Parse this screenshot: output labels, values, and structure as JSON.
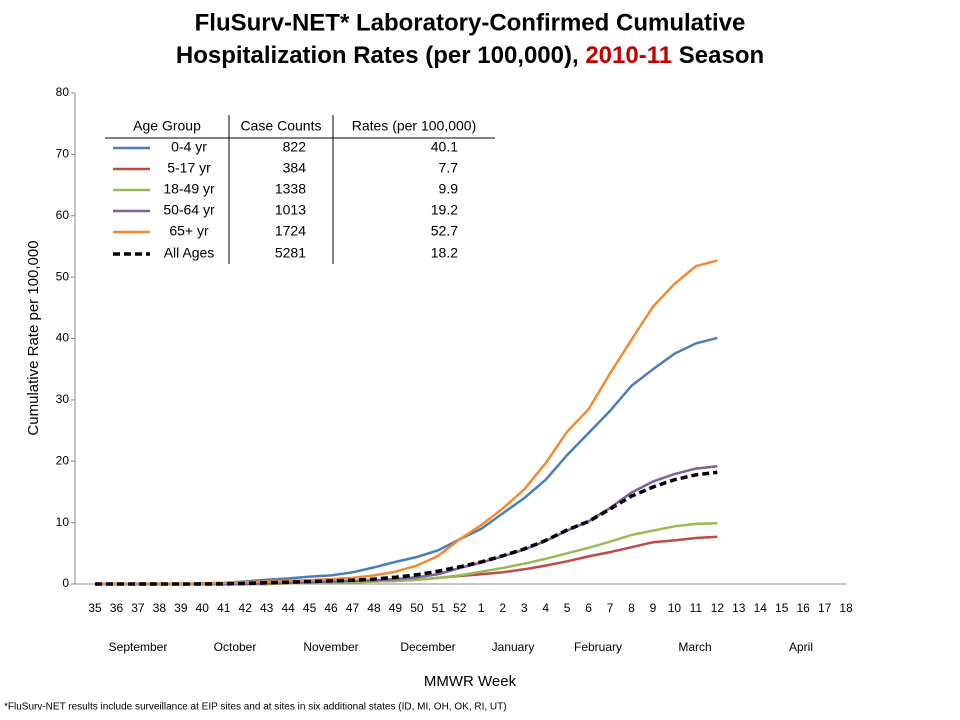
{
  "chart_data": {
    "type": "line",
    "title_line1": "FluSurv-NET* Laboratory-Confirmed Cumulative",
    "title_line2_prefix": "Hospitalization Rates (per 100,000),",
    "title_line2_highlight": "2010-11",
    "title_line2_suffix": "Season",
    "highlight_color": "#c00000",
    "x_label": "MMWR Week",
    "y_label": "Cumulative Rate per 100,000",
    "footnote": "*FluSurv-NET results include surveillance at EIP sites and at sites in six additional states (ID, MI, OH, OK, RI, UT)",
    "categories": [
      "35",
      "36",
      "37",
      "38",
      "39",
      "40",
      "41",
      "42",
      "43",
      "44",
      "45",
      "46",
      "47",
      "48",
      "49",
      "50",
      "51",
      "52",
      "1",
      "2",
      "3",
      "4",
      "5",
      "6",
      "7",
      "8",
      "9",
      "10",
      "11",
      "12",
      "13",
      "14",
      "15",
      "16",
      "17",
      "18"
    ],
    "months": [
      "September",
      "October",
      "November",
      "December",
      "January",
      "February",
      "March",
      "April"
    ],
    "ylim": [
      0,
      80
    ],
    "yticks": [
      0,
      10,
      20,
      30,
      40,
      50,
      60,
      70,
      80
    ],
    "grid": false,
    "series": [
      {
        "name": "0-4 yr",
        "color": "#4a7ebb",
        "style": "solid",
        "values": [
          0,
          0,
          0,
          0,
          0,
          0.1,
          0.2,
          0.4,
          0.7,
          0.9,
          1.2,
          1.4,
          1.9,
          2.7,
          3.6,
          4.4,
          5.5,
          7.3,
          9,
          11.5,
          14,
          17,
          21,
          24.6,
          28.2,
          32.3,
          35,
          37.5,
          39.2,
          40.1,
          null,
          null,
          null,
          null,
          null,
          null
        ]
      },
      {
        "name": "5-17 yr",
        "color": "#be4b48",
        "style": "solid",
        "values": [
          0,
          0,
          0,
          0,
          0,
          0,
          0,
          0,
          0,
          0.1,
          0.2,
          0.2,
          0.3,
          0.4,
          0.5,
          0.7,
          1.0,
          1.3,
          1.6,
          1.9,
          2.4,
          3.0,
          3.7,
          4.5,
          5.2,
          6.0,
          6.8,
          7.1,
          7.5,
          7.7,
          null,
          null,
          null,
          null,
          null,
          null
        ]
      },
      {
        "name": "18-49 yr",
        "color": "#98b954",
        "style": "solid",
        "values": [
          0,
          0,
          0,
          0,
          0,
          0,
          0,
          0,
          0,
          0.1,
          0.2,
          0.2,
          0.3,
          0.4,
          0.5,
          0.7,
          1.0,
          1.4,
          2.0,
          2.6,
          3.3,
          4.1,
          5.0,
          5.9,
          6.9,
          8.0,
          8.7,
          9.4,
          9.8,
          9.9,
          null,
          null,
          null,
          null,
          null,
          null
        ]
      },
      {
        "name": "50-64 yr",
        "color": "#7d60a0",
        "style": "solid",
        "values": [
          0,
          0,
          0,
          0,
          0,
          0,
          0,
          0,
          0.1,
          0.2,
          0.3,
          0.4,
          0.5,
          0.6,
          0.8,
          1.1,
          1.6,
          2.6,
          3.5,
          4.5,
          5.6,
          7.0,
          8.7,
          10.2,
          12.4,
          14.9,
          16.7,
          17.9,
          18.8,
          19.2,
          null,
          null,
          null,
          null,
          null,
          null
        ]
      },
      {
        "name": "65+ yr",
        "color": "#f38b2e",
        "style": "solid",
        "values": [
          0,
          0,
          0,
          0,
          0,
          0.1,
          0.2,
          0.3,
          0.4,
          0.5,
          0.6,
          0.8,
          1.0,
          1.4,
          2.0,
          3.0,
          4.6,
          7.3,
          9.6,
          12.3,
          15.4,
          19.7,
          24.8,
          28.5,
          34.3,
          39.8,
          45.2,
          48.9,
          51.8,
          52.7,
          null,
          null,
          null,
          null,
          null,
          null
        ]
      },
      {
        "name": "All Ages",
        "color": "#000000",
        "style": "dashed",
        "values": [
          0,
          0,
          0,
          0,
          0,
          0,
          0,
          0.1,
          0.2,
          0.3,
          0.4,
          0.5,
          0.6,
          0.8,
          1.1,
          1.5,
          2.1,
          2.8,
          3.6,
          4.6,
          5.7,
          7.1,
          8.8,
          10.2,
          12.2,
          14.3,
          15.8,
          17.0,
          17.8,
          18.2,
          null,
          null,
          null,
          null,
          null,
          null
        ]
      }
    ],
    "legend_table": {
      "headers": [
        "Age Group",
        "Case Counts",
        "Rates (per 100,000)"
      ],
      "case_counts": [
        822,
        384,
        1338,
        1013,
        1724,
        5281
      ],
      "rates": [
        40.1,
        7.7,
        9.9,
        19.2,
        52.7,
        18.2
      ]
    }
  }
}
